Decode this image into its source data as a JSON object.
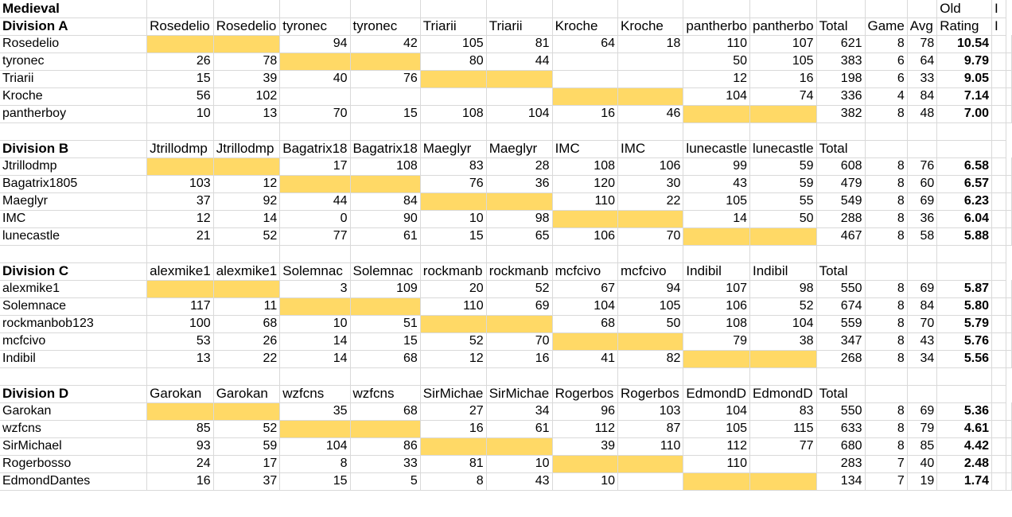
{
  "sheet": {
    "title": "Medieval",
    "top_header": {
      "old": "Old",
      "extra": "I"
    },
    "divisions": [
      {
        "name": "Division A",
        "players": [
          "Rosedelio",
          "tyronec",
          "Triarii",
          "Kroche",
          "pantherboy"
        ],
        "col_headers": [
          "Rosedelio",
          "Rosedelio",
          "tyronec",
          "tyronec",
          "Triarii",
          "Triarii",
          "Kroche",
          "Kroche",
          "pantherbo",
          "pantherbo",
          "Total",
          "Game",
          "Avg",
          "Rating",
          "I"
        ],
        "rows": [
          [
            "",
            "",
            "94",
            "42",
            "105",
            "81",
            "64",
            "18",
            "110",
            "107",
            "621",
            "8",
            "78",
            "10.54"
          ],
          [
            "26",
            "78",
            "",
            "",
            "80",
            "44",
            "",
            "",
            "50",
            "105",
            "383",
            "6",
            "64",
            "9.79"
          ],
          [
            "15",
            "39",
            "40",
            "76",
            "",
            "",
            "",
            "",
            "12",
            "16",
            "198",
            "6",
            "33",
            "9.05"
          ],
          [
            "56",
            "102",
            "",
            "",
            "",
            "",
            "",
            "",
            "104",
            "74",
            "336",
            "4",
            "84",
            "7.14"
          ],
          [
            "10",
            "13",
            "70",
            "15",
            "108",
            "104",
            "16",
            "46",
            "",
            "",
            "382",
            "8",
            "48",
            "7.00"
          ]
        ]
      },
      {
        "name": "Division B",
        "players": [
          "Jtrillodmp",
          "Bagatrix1805",
          "Maeglyr",
          "IMC",
          "lunecastle"
        ],
        "col_headers": [
          "Jtrillodmp",
          "Jtrillodmp",
          "Bagatrix18",
          "Bagatrix18",
          "Maeglyr",
          "Maeglyr",
          "IMC",
          "IMC",
          "lunecastle",
          "lunecastle",
          "Total",
          "",
          "",
          "",
          ""
        ],
        "rows": [
          [
            "",
            "",
            "17",
            "108",
            "83",
            "28",
            "108",
            "106",
            "99",
            "59",
            "608",
            "8",
            "76",
            "6.58"
          ],
          [
            "103",
            "12",
            "",
            "",
            "76",
            "36",
            "120",
            "30",
            "43",
            "59",
            "479",
            "8",
            "60",
            "6.57"
          ],
          [
            "37",
            "92",
            "44",
            "84",
            "",
            "",
            "110",
            "22",
            "105",
            "55",
            "549",
            "8",
            "69",
            "6.23"
          ],
          [
            "12",
            "14",
            "0",
            "90",
            "10",
            "98",
            "",
            "",
            "14",
            "50",
            "288",
            "8",
            "36",
            "6.04"
          ],
          [
            "21",
            "52",
            "77",
            "61",
            "15",
            "65",
            "106",
            "70",
            "",
            "",
            "467",
            "8",
            "58",
            "5.88"
          ]
        ]
      },
      {
        "name": "Division C",
        "players": [
          "alexmike1",
          "Solemnace",
          "rockmanbob123",
          "mcfcivo",
          "Indibil"
        ],
        "col_headers": [
          "alexmike1",
          "alexmike1",
          "Solemnac",
          "Solemnac",
          "rockmanb",
          "rockmanb",
          "mcfcivo",
          "mcfcivo",
          "Indibil",
          "Indibil",
          "Total",
          "",
          "",
          "",
          ""
        ],
        "rows": [
          [
            "",
            "",
            "3",
            "109",
            "20",
            "52",
            "67",
            "94",
            "107",
            "98",
            "550",
            "8",
            "69",
            "5.87"
          ],
          [
            "117",
            "11",
            "",
            "",
            "110",
            "69",
            "104",
            "105",
            "106",
            "52",
            "674",
            "8",
            "84",
            "5.80"
          ],
          [
            "100",
            "68",
            "10",
            "51",
            "",
            "",
            "68",
            "50",
            "108",
            "104",
            "559",
            "8",
            "70",
            "5.79"
          ],
          [
            "53",
            "26",
            "14",
            "15",
            "52",
            "70",
            "",
            "",
            "79",
            "38",
            "347",
            "8",
            "43",
            "5.76"
          ],
          [
            "13",
            "22",
            "14",
            "68",
            "12",
            "16",
            "41",
            "82",
            "",
            "",
            "268",
            "8",
            "34",
            "5.56"
          ]
        ]
      },
      {
        "name": "Division D",
        "players": [
          "Garokan",
          "wzfcns",
          "SirMichael",
          "Rogerbosso",
          "EdmondDantes"
        ],
        "col_headers": [
          "Garokan",
          "Garokan",
          "wzfcns",
          "wzfcns",
          "SirMichae",
          "SirMichae",
          "Rogerbos",
          "Rogerbos",
          "EdmondD",
          "EdmondD",
          "Total",
          "",
          "",
          "",
          ""
        ],
        "rows": [
          [
            "",
            "",
            "35",
            "68",
            "27",
            "34",
            "96",
            "103",
            "104",
            "83",
            "550",
            "8",
            "69",
            "5.36"
          ],
          [
            "85",
            "52",
            "",
            "",
            "16",
            "61",
            "112",
            "87",
            "105",
            "115",
            "633",
            "8",
            "79",
            "4.61"
          ],
          [
            "93",
            "59",
            "104",
            "86",
            "",
            "",
            "39",
            "110",
            "112",
            "77",
            "680",
            "8",
            "85",
            "4.42"
          ],
          [
            "24",
            "17",
            "8",
            "33",
            "81",
            "10",
            "",
            "",
            "110",
            "",
            "283",
            "7",
            "40",
            "2.48"
          ],
          [
            "16",
            "37",
            "15",
            "5",
            "8",
            "43",
            "10",
            "",
            "",
            "",
            "134",
            "7",
            "19",
            "1.74"
          ]
        ]
      }
    ]
  },
  "colors": {
    "highlight": "#ffd966",
    "gridline": "#d9d9d9"
  }
}
